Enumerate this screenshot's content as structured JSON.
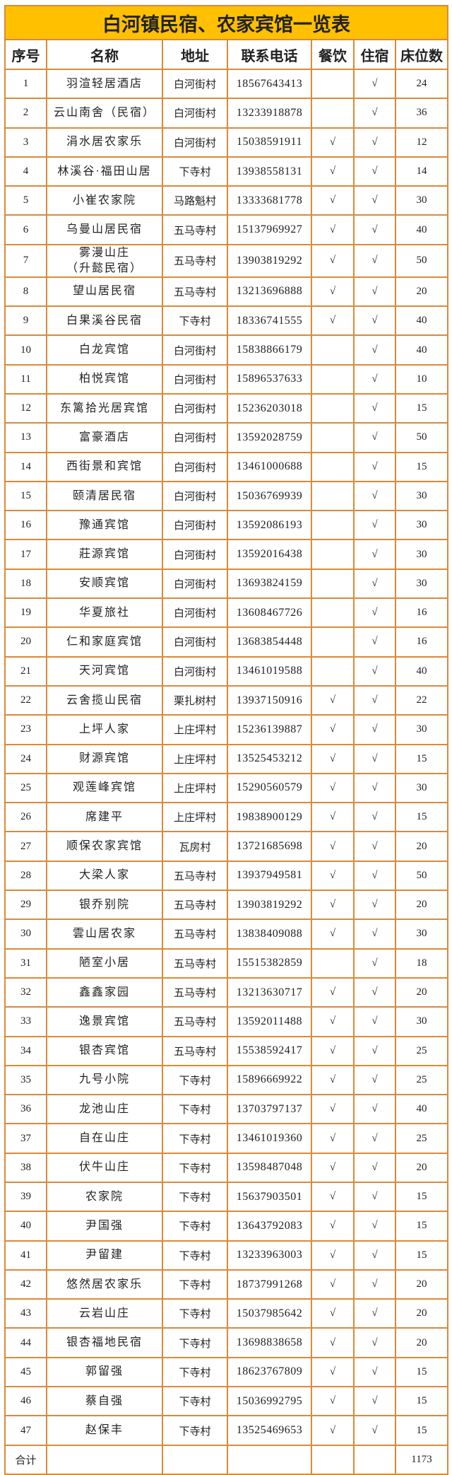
{
  "title": "白河镇民宿、农家宾馆一览表",
  "colors": {
    "title_bg": "#FFC000",
    "border": "#D98A3A"
  },
  "check_mark": "√",
  "columns": [
    "序号",
    "名称",
    "地址",
    "联系电话",
    "餐饮",
    "住宿",
    "床位数"
  ],
  "rows": [
    [
      "1",
      "羽渲轻居酒店",
      "白河街村",
      "18567643413",
      "",
      "√",
      "24"
    ],
    [
      "2",
      "云山南舍（民宿）",
      "白河街村",
      "13233918878",
      "",
      "√",
      "36"
    ],
    [
      "3",
      "涓水居农家乐",
      "白河街村",
      "15038591911",
      "√",
      "√",
      "12"
    ],
    [
      "4",
      "林溪谷·福田山居",
      "下寺村",
      "13938558131",
      "√",
      "√",
      "14"
    ],
    [
      "5",
      "小崔农家院",
      "马路魁村",
      "13333681778",
      "√",
      "√",
      "30"
    ],
    [
      "6",
      "乌曼山居民宿",
      "五马寺村",
      "15137969927",
      "√",
      "√",
      "40"
    ],
    [
      "7",
      "雾漫山庄\n（升懿民宿）",
      "五马寺村",
      "13903819292",
      "√",
      "√",
      "50"
    ],
    [
      "8",
      "望山居民宿",
      "五马寺村",
      "13213696888",
      "√",
      "√",
      "20"
    ],
    [
      "9",
      "白果溪谷民宿",
      "下寺村",
      "18336741555",
      "√",
      "√",
      "40"
    ],
    [
      "10",
      "白龙宾馆",
      "白河街村",
      "15838866179",
      "",
      "√",
      "40"
    ],
    [
      "11",
      "柏悦宾馆",
      "白河街村",
      "15896537633",
      "",
      "√",
      "10"
    ],
    [
      "12",
      "东篱拾光居宾馆",
      "白河街村",
      "15236203018",
      "",
      "√",
      "15"
    ],
    [
      "13",
      "富豪酒店",
      "白河街村",
      "13592028759",
      "",
      "√",
      "50"
    ],
    [
      "14",
      "西街景和宾馆",
      "白河街村",
      "13461000688",
      "",
      "√",
      "15"
    ],
    [
      "15",
      "颐清居民宿",
      "白河街村",
      "15036769939",
      "",
      "√",
      "30"
    ],
    [
      "16",
      "豫通宾馆",
      "白河街村",
      "13592086193",
      "",
      "√",
      "30"
    ],
    [
      "17",
      "莊源宾馆",
      "白河街村",
      "13592016438",
      "",
      "√",
      "30"
    ],
    [
      "18",
      "安顺宾馆",
      "白河街村",
      "13693824159",
      "",
      "√",
      "30"
    ],
    [
      "19",
      "华夏旅社",
      "白河街村",
      "13608467726",
      "",
      "√",
      "16"
    ],
    [
      "20",
      "仁和家庭宾馆",
      "白河街村",
      "13683854448",
      "",
      "√",
      "16"
    ],
    [
      "21",
      "天河宾馆",
      "白河街村",
      "13461019588",
      "",
      "√",
      "40"
    ],
    [
      "22",
      "云舍揽山民宿",
      "栗扎树村",
      "13937150916",
      "√",
      "√",
      "22"
    ],
    [
      "23",
      "上坪人家",
      "上庄坪村",
      "15236139887",
      "√",
      "√",
      "30"
    ],
    [
      "24",
      "财源宾馆",
      "上庄坪村",
      "13525453212",
      "√",
      "√",
      "15"
    ],
    [
      "25",
      "观莲峰宾馆",
      "上庄坪村",
      "15290560579",
      "√",
      "√",
      "30"
    ],
    [
      "26",
      "席建平",
      "上庄坪村",
      "19838900129",
      "√",
      "√",
      "15"
    ],
    [
      "27",
      "顺保农家宾馆",
      "瓦房村",
      "13721685698",
      "√",
      "√",
      "20"
    ],
    [
      "28",
      "大梁人家",
      "五马寺村",
      "13937949581",
      "√",
      "√",
      "50"
    ],
    [
      "29",
      "银乔别院",
      "五马寺村",
      "13903819292",
      "√",
      "√",
      "20"
    ],
    [
      "30",
      "雲山居农家",
      "五马寺村",
      "13838409088",
      "√",
      "√",
      "30"
    ],
    [
      "31",
      "陋室小居",
      "五马寺村",
      "15515382859",
      "",
      "√",
      "18"
    ],
    [
      "32",
      "鑫鑫家园",
      "五马寺村",
      "13213630717",
      "√",
      "√",
      "20"
    ],
    [
      "33",
      "逸景宾馆",
      "五马寺村",
      "13592011488",
      "√",
      "√",
      "30"
    ],
    [
      "34",
      "银杏宾馆",
      "五马寺村",
      "15538592417",
      "√",
      "√",
      "25"
    ],
    [
      "35",
      "九号小院",
      "下寺村",
      "15896669922",
      "√",
      "√",
      "25"
    ],
    [
      "36",
      "龙池山庄",
      "下寺村",
      "13703797137",
      "√",
      "√",
      "40"
    ],
    [
      "37",
      "自在山庄",
      "下寺村",
      "13461019360",
      "√",
      "√",
      "25"
    ],
    [
      "38",
      "伏牛山庄",
      "下寺村",
      "13598487048",
      "√",
      "√",
      "20"
    ],
    [
      "39",
      "农家院",
      "下寺村",
      "15637903501",
      "√",
      "√",
      "15"
    ],
    [
      "40",
      "尹国强",
      "下寺村",
      "13643792083",
      "√",
      "√",
      "15"
    ],
    [
      "41",
      "尹留建",
      "下寺村",
      "13233963003",
      "√",
      "√",
      "15"
    ],
    [
      "42",
      "悠然居农家乐",
      "下寺村",
      "18737991268",
      "√",
      "√",
      "20"
    ],
    [
      "43",
      "云岩山庄",
      "下寺村",
      "15037985642",
      "√",
      "√",
      "20"
    ],
    [
      "44",
      "银杏福地民宿",
      "下寺村",
      "13698838658",
      "√",
      "√",
      "20"
    ],
    [
      "45",
      "郭留强",
      "下寺村",
      "18623767809",
      "√",
      "√",
      "15"
    ],
    [
      "46",
      "蔡自强",
      "下寺村",
      "15036992795",
      "√",
      "√",
      "15"
    ],
    [
      "47",
      "赵保丰",
      "下寺村",
      "13525469653",
      "√",
      "√",
      "15"
    ]
  ],
  "total": {
    "label": "合计",
    "beds": "1173"
  }
}
